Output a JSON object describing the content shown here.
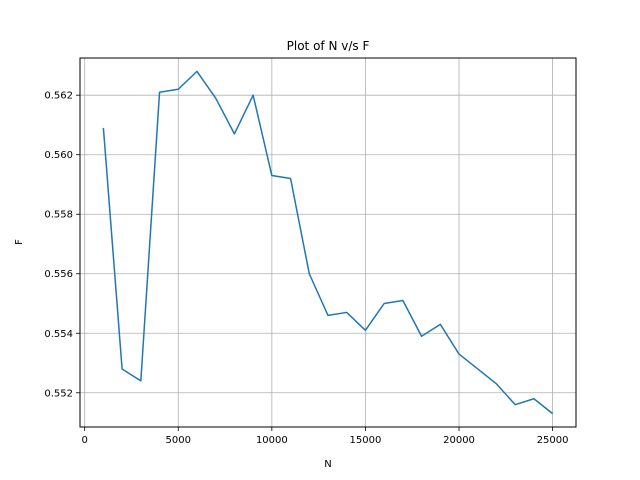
{
  "chart_data": {
    "type": "line",
    "title": "Plot of N v/s F",
    "xlabel": "N",
    "ylabel": "F",
    "xlim": [
      -250,
      26250
    ],
    "ylim": [
      0.55085,
      0.56325
    ],
    "xticks": [
      0,
      5000,
      10000,
      15000,
      20000,
      25000
    ],
    "xtick_labels": [
      "0",
      "5000",
      "10000",
      "15000",
      "20000",
      "25000"
    ],
    "yticks": [
      0.552,
      0.554,
      0.556,
      0.558,
      0.56,
      0.562
    ],
    "ytick_labels": [
      "0.552",
      "0.554",
      "0.556",
      "0.558",
      "0.560",
      "0.562"
    ],
    "grid": true,
    "colors": {
      "line": "#1f77b4",
      "grid": "#b0b0b0",
      "axes": "#000000"
    },
    "series": [
      {
        "x": [
          1000,
          2000,
          3000,
          4000,
          5000,
          6000,
          7000,
          8000,
          9000,
          10000,
          11000,
          12000,
          13000,
          14000,
          15000,
          16000,
          17000,
          18000,
          19000,
          20000,
          21000,
          22000,
          23000,
          24000,
          25000
        ],
        "y": [
          0.5609,
          0.5528,
          0.5524,
          0.5621,
          0.5622,
          0.5628,
          0.5619,
          0.5607,
          0.562,
          0.5593,
          0.5592,
          0.556,
          0.5546,
          0.5547,
          0.5541,
          0.555,
          0.5551,
          0.5539,
          0.5543,
          0.5533,
          0.5528,
          0.5523,
          0.5516,
          0.5518,
          0.5513
        ]
      }
    ]
  }
}
